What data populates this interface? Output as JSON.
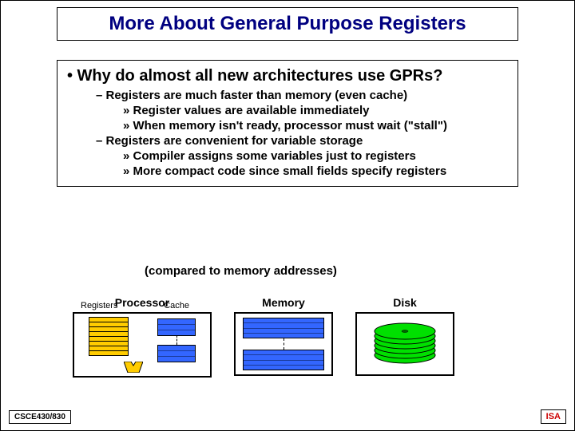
{
  "title": "More About General Purpose Registers",
  "bullets": {
    "l1": "•  Why do almost all new architectures use GPRs?",
    "l2a": "–  Registers are much faster than memory (even cache)",
    "l3a": "»  Register values are available immediately",
    "l3b": "»  When memory isn't ready, processor must wait (\"stall\")",
    "l2b": "–  Registers are convenient for variable storage",
    "l3c": "»  Compiler assigns some variables just to registers",
    "l3d": "»  More compact code since small fields specify registers",
    "l3d_cont": "(compared to memory addresses)"
  },
  "diagram": {
    "processor_label": "Processor",
    "registers_label": "Registers",
    "cache_label": "Cache",
    "memory_label": "Memory",
    "disk_label": "Disk",
    "colors": {
      "register_fill": "#ffcc00",
      "cache_mem_fill": "#3366ff",
      "disk_fill": "#00e000",
      "border": "#000000",
      "title_color": "#000080"
    },
    "register_rows": 8,
    "cache_lines_per_block": 3,
    "mem_lines_per_block": 4,
    "disk_platters": 6
  },
  "footer": {
    "left": "CSCE430/830",
    "right": "ISA"
  }
}
